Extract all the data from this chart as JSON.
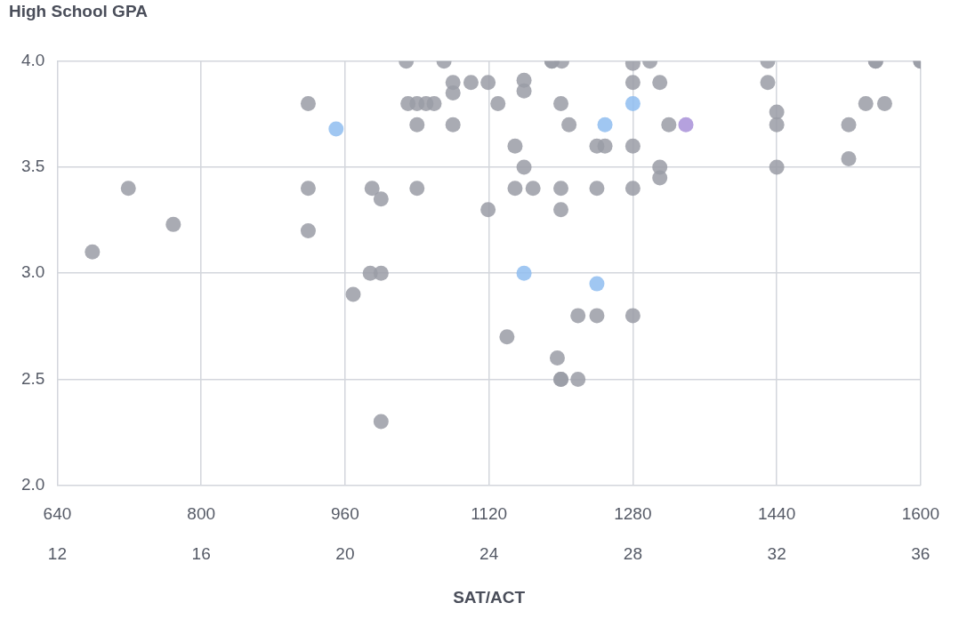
{
  "chart_data": {
    "type": "scatter",
    "ylabel": "High School GPA",
    "xlabel": "SAT/ACT",
    "xlim": [
      640,
      1600
    ],
    "ylim": [
      2,
      4
    ],
    "xticks": [
      640,
      800,
      960,
      1120,
      1280,
      1440,
      1600
    ],
    "x2lim": [
      12,
      36
    ],
    "x2ticks": [
      12,
      16,
      20,
      24,
      28,
      32,
      36
    ],
    "yticks": [
      {
        "value": 2,
        "label": "2.0"
      },
      {
        "value": 2.5,
        "label": "2.5"
      },
      {
        "value": 3,
        "label": "3.0"
      },
      {
        "value": 3.5,
        "label": "3.5"
      },
      {
        "value": 4,
        "label": "4.0"
      }
    ],
    "grid": true,
    "legend": false,
    "marker": "circle",
    "series": [
      {
        "color": "#9a9ca6",
        "x": [
          679,
          719,
          769,
          919,
          919,
          919,
          969,
          988,
          990,
          1000,
          1000,
          1000,
          1028,
          1030,
          1040,
          1050,
          1059,
          1040,
          1040,
          1070,
          1080,
          1080,
          1080,
          1100,
          1119,
          1119,
          1130,
          1140,
          1149,
          1149,
          1159,
          1159,
          1159,
          1169,
          1190,
          1190,
          1201,
          1200,
          1200,
          1200,
          1196,
          1200,
          1200,
          1209,
          1219,
          1219,
          1240,
          1240,
          1240,
          1249,
          1280,
          1280,
          1280,
          1280,
          1280,
          1299,
          1310,
          1310,
          1310,
          1320,
          1430,
          1430,
          1440,
          1440,
          1440,
          1520,
          1520,
          1539,
          1560,
          1550,
          1550,
          1600,
          1600
        ],
        "values": [
          3.1,
          3.4,
          3.23,
          3.8,
          3.4,
          3.2,
          2.9,
          3.0,
          3.4,
          3.35,
          3.0,
          2.3,
          4.0,
          3.8,
          3.8,
          3.8,
          3.8,
          3.7,
          3.4,
          4.0,
          3.9,
          3.85,
          3.7,
          3.9,
          3.9,
          3.3,
          3.8,
          2.7,
          3.6,
          3.4,
          3.91,
          3.86,
          3.5,
          3.4,
          4.0,
          4.0,
          4.0,
          3.8,
          3.4,
          3.3,
          2.6,
          2.5,
          2.5,
          3.7,
          2.8,
          2.5,
          3.6,
          3.4,
          2.8,
          3.6,
          3.99,
          3.9,
          3.6,
          3.4,
          2.8,
          4.0,
          3.9,
          3.5,
          3.45,
          3.7,
          4.0,
          3.9,
          3.76,
          3.7,
          3.5,
          3.7,
          3.54,
          3.8,
          3.8,
          4.0,
          4.0,
          4.0,
          4.0
        ]
      },
      {
        "color": "#8fbdf0",
        "x": [
          950,
          1159,
          1240,
          1249,
          1280
        ],
        "values": [
          3.68,
          3.0,
          2.95,
          3.7,
          3.8
        ]
      },
      {
        "color": "#a891d8",
        "x": [
          1339
        ],
        "values": [
          3.7
        ]
      }
    ]
  }
}
